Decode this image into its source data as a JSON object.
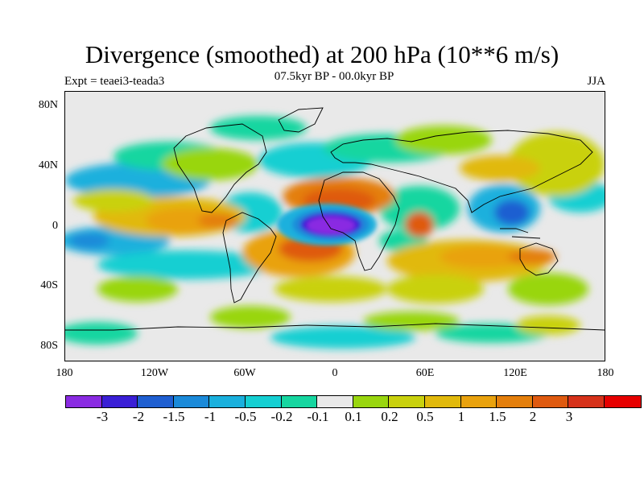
{
  "header": {
    "title": "Divergence (smoothed) at 200 hPa (10**6 m/s)",
    "subtitle": "07.5kyr BP - 00.0kyr BP",
    "experiment": "Expt = teaei3-teada3",
    "season": "JJA"
  },
  "axes": {
    "lat_labels": [
      "80N",
      "40N",
      "0",
      "40S",
      "80S"
    ],
    "lon_labels": [
      "180",
      "120W",
      "60W",
      "0",
      "60E",
      "120E",
      "180"
    ]
  },
  "colorbar": {
    "colors": [
      "#8a2be2",
      "#3a1fd6",
      "#1f5fd1",
      "#1b8ad9",
      "#1ab0dd",
      "#15cfd2",
      "#16d6a0",
      "#e9e9e9",
      "#99d60f",
      "#c9d10e",
      "#e1b90c",
      "#e9a20e",
      "#e47f0c",
      "#df5a10",
      "#d6321a",
      "#e60000"
    ],
    "labels": [
      "-3",
      "-2",
      "-1.5",
      "-1",
      "-0.5",
      "-0.2",
      "-0.1",
      "0.1",
      "0.2",
      "0.5",
      "1",
      "1.5",
      "2",
      "3"
    ]
  },
  "map_data": {
    "projection": "cylindrical equidistant",
    "lon_range": [
      -180,
      180
    ],
    "lat_range": [
      -90,
      90
    ],
    "variable": "200 hPa divergence difference",
    "features": [
      {
        "name": "tropical-atlantic-convergence-core",
        "lon": -15,
        "lat": 2,
        "value": -3
      },
      {
        "name": "north-africa-divergence",
        "lon": 5,
        "lat": 18,
        "value": 2
      },
      {
        "name": "south-atlantic-divergence",
        "lon": -25,
        "lat": -12,
        "value": 2
      },
      {
        "name": "west-pacific-divergence",
        "lon": 120,
        "lat": -12,
        "value": 1.5
      },
      {
        "name": "maritime-continent-convergence",
        "lon": 115,
        "lat": 12,
        "value": -1.5
      },
      {
        "name": "east-pacific-divergence",
        "lon": -100,
        "lat": -5,
        "value": 1.5
      },
      {
        "name": "central-pacific-convergence",
        "lon": -165,
        "lat": -10,
        "value": -1
      }
    ]
  }
}
